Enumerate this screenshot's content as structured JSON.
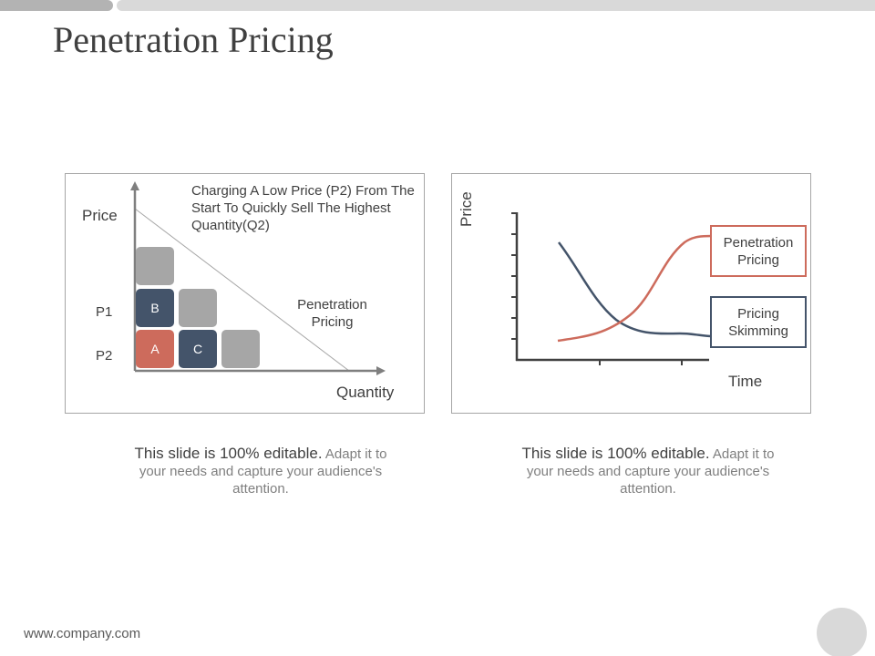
{
  "title": "Penetration Pricing",
  "left_diagram": {
    "description": "Charging A Low Price (P2) From The Start To Quickly Sell The Highest Quantity(Q2)",
    "y_label": "Price",
    "x_label": "Quantity",
    "p1_label": "P1",
    "p2_label": "P2",
    "region_label": "Penetration Pricing",
    "squares": [
      "B",
      "A",
      "C"
    ]
  },
  "right_chart": {
    "y_label": "Price",
    "x_label": "Time",
    "penetration_label": "Penetration Pricing",
    "skimming_label": "Pricing Skimming"
  },
  "captions": [
    {
      "bold": "This slide is 100% editable.",
      "rest": "Adapt it to your needs and capture your audience's attention."
    },
    {
      "bold": "This slide is 100% editable.",
      "rest": "Adapt it to your needs and capture your audience's attention."
    }
  ],
  "footer": "www.company.com",
  "colors": {
    "penetration": "#cd6b5c",
    "skimming": "#44546a",
    "grey": "#a6a6a6"
  }
}
